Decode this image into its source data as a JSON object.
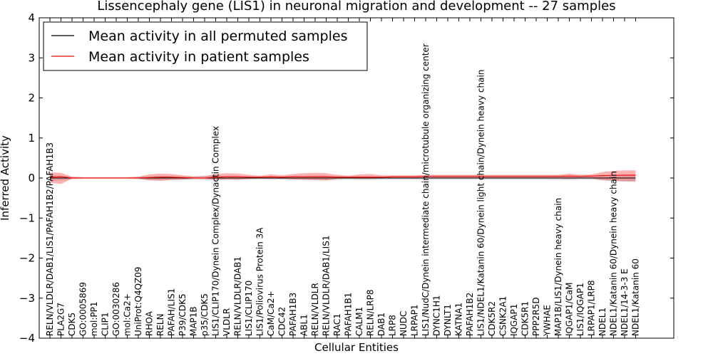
{
  "chart_data": {
    "type": "line",
    "title": "Lissencephaly gene (LIS1) in neuronal migration and development -- 27 samples",
    "xlabel": "Cellular Entities",
    "ylabel": "Inferred Activity",
    "ylim": [
      -4,
      4
    ],
    "yticks": [
      -4,
      -3,
      -2,
      -1,
      0,
      1,
      2,
      3,
      4
    ],
    "ytick_labels": [
      "−4",
      "−3",
      "−2",
      "−1",
      "0",
      "1",
      "2",
      "3",
      "4"
    ],
    "grid": false,
    "legend_position": "top-left",
    "categories": [
      "RELN/VLDLR/DAB1/LIS1/PAFAH1B2/PAFAH1B3",
      "PLA2G7",
      "CDK5",
      "GO:0005869",
      "mol:PP1",
      "CLIP1",
      "GO:0030286",
      "mol:Ca2+",
      "UniProt:Q4QZ09",
      "RHOA",
      "RELN",
      "PAFAH/LIS1",
      "P39/CDK5",
      "MAP1B",
      "p35/CDK5",
      "LIS1/CLIP170/Dynein Complex/Dynactin Complex",
      "VLDLR",
      "RELN/VLDLR/DAB1",
      "LIS1/CLIP170",
      "LIS1/Poliovirus Protein 3A",
      "CaM/Ca2+",
      "CDC42",
      "PAFAH1B3",
      "ABL1",
      "RELN/VLDLR",
      "RELN/VLDLR/DAB1/LIS1",
      "RAC1",
      "PAFAH1B1",
      "CALM1",
      "RELN/LRP8",
      "DAB1",
      "LRP8",
      "NUDC",
      "LRPAP1",
      "LIS1/NudC/Dynein intermediate chain/microtubule organizing center",
      "DYNC1H1",
      "DYNLT1",
      "KATNA1",
      "PAFAH1B2",
      "LIS1/NDEL1/Katanin 60/Dynein light chain/Dynein heavy chain",
      "CDK5R2",
      "CSNK2A1",
      "IQGAP1",
      "CDK5R1",
      "PPP2R5D",
      "YWHAE",
      "MAP1B/LIS1/Dynein heavy chain",
      "IQGAP1/CaM",
      "LIS1/IQGAP1",
      "LRPAP1/LRP8",
      "NDEL1",
      "NDEL1/Katanin 60/Dynein heavy chain",
      "NDEL1/14-3-3 E",
      "NDEL1/Katanin 60"
    ],
    "series": [
      {
        "name": "Mean activity in all permuted samples",
        "color": "#000000",
        "values": [
          0.0,
          0.0,
          0.0,
          0.0,
          0.0,
          0.0,
          0.0,
          0.0,
          0.0,
          0.0,
          0.0,
          0.0,
          0.0,
          0.0,
          0.0,
          0.0,
          0.0,
          0.0,
          0.0,
          0.0,
          0.0,
          0.0,
          0.0,
          0.0,
          0.0,
          0.0,
          0.0,
          0.0,
          0.0,
          0.0,
          0.0,
          0.0,
          0.0,
          0.0,
          0.0,
          0.0,
          0.0,
          0.0,
          0.0,
          0.0,
          0.0,
          0.0,
          0.0,
          0.0,
          0.0,
          0.0,
          0.0,
          0.0,
          0.0,
          0.0,
          0.0,
          0.0,
          0.0,
          0.0
        ],
        "band_lower": [
          -0.08,
          -0.06,
          -0.03,
          -0.02,
          -0.02,
          -0.02,
          -0.02,
          -0.02,
          -0.03,
          -0.05,
          -0.06,
          -0.05,
          -0.04,
          -0.04,
          -0.05,
          -0.06,
          -0.05,
          -0.05,
          -0.04,
          -0.03,
          -0.04,
          -0.04,
          -0.05,
          -0.05,
          -0.06,
          -0.06,
          -0.05,
          -0.04,
          -0.05,
          -0.05,
          -0.04,
          -0.04,
          -0.04,
          -0.04,
          -0.04,
          -0.04,
          -0.04,
          -0.04,
          -0.04,
          -0.04,
          -0.04,
          -0.04,
          -0.04,
          -0.04,
          -0.04,
          -0.04,
          -0.05,
          -0.05,
          -0.04,
          -0.04,
          -0.06,
          -0.08,
          -0.09,
          -0.1
        ],
        "band_upper": [
          0.08,
          0.06,
          0.03,
          0.02,
          0.02,
          0.02,
          0.02,
          0.02,
          0.03,
          0.05,
          0.06,
          0.05,
          0.04,
          0.04,
          0.05,
          0.06,
          0.05,
          0.05,
          0.04,
          0.03,
          0.04,
          0.04,
          0.05,
          0.05,
          0.06,
          0.06,
          0.05,
          0.04,
          0.05,
          0.05,
          0.04,
          0.04,
          0.04,
          0.04,
          0.04,
          0.04,
          0.04,
          0.04,
          0.04,
          0.04,
          0.04,
          0.04,
          0.04,
          0.04,
          0.04,
          0.04,
          0.05,
          0.05,
          0.04,
          0.04,
          0.06,
          0.08,
          0.09,
          0.1
        ]
      },
      {
        "name": "Mean activity in patient samples",
        "color": "#ff0000",
        "values": [
          0.02,
          0.03,
          0.0,
          0.0,
          0.0,
          0.0,
          0.0,
          0.0,
          0.0,
          0.01,
          0.02,
          0.02,
          0.01,
          0.0,
          0.0,
          0.02,
          0.03,
          0.03,
          0.02,
          0.02,
          0.03,
          0.02,
          0.03,
          0.03,
          0.03,
          0.03,
          0.02,
          0.02,
          0.02,
          0.02,
          0.02,
          0.03,
          0.03,
          0.03,
          0.04,
          0.04,
          0.04,
          0.04,
          0.04,
          0.04,
          0.04,
          0.04,
          0.04,
          0.04,
          0.04,
          0.04,
          0.04,
          0.05,
          0.04,
          0.05,
          0.06,
          0.07,
          0.07,
          0.07
        ],
        "band_lower": [
          -0.12,
          -0.15,
          -0.02,
          -0.01,
          -0.01,
          -0.01,
          -0.01,
          -0.01,
          -0.02,
          -0.06,
          -0.07,
          -0.05,
          -0.04,
          -0.02,
          -0.02,
          -0.04,
          -0.03,
          -0.04,
          -0.02,
          -0.01,
          -0.02,
          -0.02,
          -0.03,
          -0.04,
          -0.05,
          -0.06,
          -0.02,
          -0.01,
          -0.02,
          -0.02,
          -0.01,
          -0.01,
          -0.01,
          -0.01,
          -0.01,
          -0.01,
          -0.01,
          -0.01,
          -0.01,
          -0.01,
          -0.01,
          -0.01,
          -0.01,
          -0.01,
          -0.01,
          -0.01,
          -0.01,
          -0.02,
          -0.01,
          -0.01,
          -0.05,
          -0.07,
          -0.08,
          -0.08
        ],
        "band_upper": [
          0.14,
          0.13,
          0.03,
          0.02,
          0.02,
          0.02,
          0.02,
          0.02,
          0.03,
          0.09,
          0.11,
          0.1,
          0.07,
          0.04,
          0.05,
          0.1,
          0.12,
          0.11,
          0.08,
          0.06,
          0.09,
          0.07,
          0.1,
          0.12,
          0.13,
          0.12,
          0.08,
          0.06,
          0.09,
          0.1,
          0.07,
          0.07,
          0.07,
          0.07,
          0.08,
          0.08,
          0.08,
          0.08,
          0.08,
          0.08,
          0.08,
          0.08,
          0.08,
          0.08,
          0.08,
          0.08,
          0.08,
          0.11,
          0.08,
          0.09,
          0.15,
          0.18,
          0.19,
          0.19
        ]
      }
    ]
  }
}
